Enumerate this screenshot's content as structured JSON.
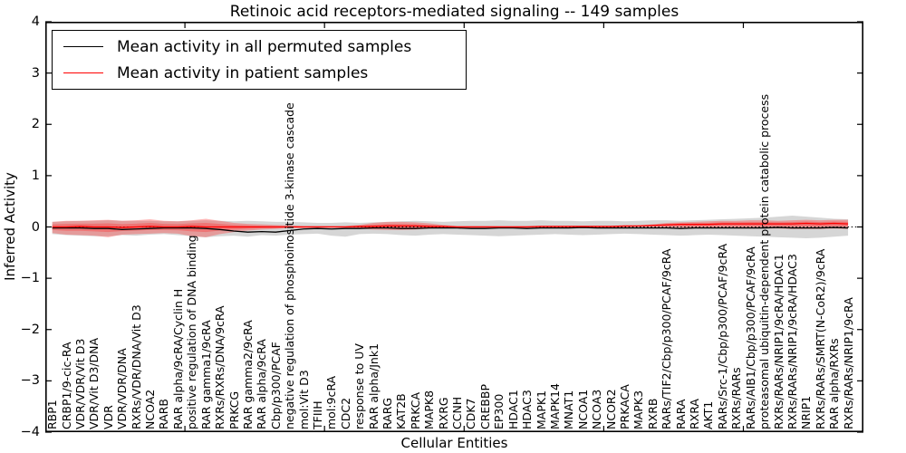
{
  "title": "Retinoic acid receptors-mediated signaling -- 149 samples",
  "axes": {
    "x_label": "Cellular Entities",
    "y_label": "Inferred Activity",
    "y_ticks": [
      "4",
      "3",
      "2",
      "1",
      "0",
      "−1",
      "−2",
      "−3",
      "−4"
    ],
    "y_tick_values": [
      4,
      3,
      2,
      1,
      0,
      -1,
      -2,
      -3,
      -4
    ],
    "x_tick_values": [
      10,
      20,
      30,
      40,
      50
    ]
  },
  "legend": {
    "entries": [
      {
        "label": "Mean activity in all permuted samples",
        "color": "#000000"
      },
      {
        "label": "Mean activity in patient samples",
        "color": "#ff0000"
      }
    ]
  },
  "chart_data": {
    "type": "line",
    "title": "Retinoic acid receptors-mediated signaling -- 149 samples",
    "xlabel": "Cellular Entities",
    "ylabel": "Inferred Activity",
    "ylim": [
      -4,
      4
    ],
    "x_max": 58.6,
    "grid": false,
    "legend_position": "upper left",
    "zero_line": 0,
    "inner_band_fraction": 0.5,
    "categories": [
      "RBP1",
      "CRBP1/9-cic-RA",
      "VDR/VDR/Vit D3",
      "VDR/Vit D3/DNA",
      "VDR",
      "VDR/VDR/DNA",
      "RXRs/VDR/DNA/Vit D3",
      "NCOA2",
      "RARB",
      "RAR alpha/9cRA/Cyclin H",
      "positive regulation of DNA binding",
      "RAR gamma1/9cRA",
      "RXRs/RXRs/DNA/9cRA",
      "PRKCG",
      "RAR gamma2/9cRA",
      "RAR alpha/9cRA",
      "Cbp/p300/PCAF",
      "negative regulation of phosphoinositide 3-kinase cascade",
      "mol:Vit D3",
      "TFIIH",
      "mol:9cRA",
      "CDC2",
      "response to UV",
      "RAR alpha/Jnk1",
      "RARG",
      "KAT2B",
      "PRKCA",
      "MAPK8",
      "RXRG",
      "CCNH",
      "CDK7",
      "CREBBP",
      "EP300",
      "HDAC1",
      "HDAC3",
      "MAPK1",
      "MAPK14",
      "MNAT1",
      "NCOA1",
      "NCOA3",
      "NCOR2",
      "PRKACA",
      "MAPK3",
      "RXRB",
      "RARs/TIF2/Cbp/p300/PCAF/9cRA",
      "RARA",
      "RXRA",
      "AKT1",
      "RARs/Src-1/Cbp/p300/PCAF/9cRA",
      "RXRs/RARs",
      "RARs/AIB1/Cbp/p300/PCAF/9cRA",
      "proteasomal ubiquitin-dependent protein catabolic process",
      "RXRs/RARs/NRIP1/9cRA/HDAC1",
      "RXRs/RARs/NRIP1/9cRA/HDAC3",
      "NRIP1",
      "RXRs/RARs/SMRT(N-CoR2)/9cRA",
      "RAR alpha/RXRs",
      "RXRs/RARs/NRIP1/9cRA"
    ],
    "series": [
      {
        "name": "Mean activity in all permuted samples",
        "color": "#000000",
        "values": [
          -0.02,
          -0.02,
          -0.02,
          -0.03,
          -0.03,
          -0.05,
          -0.04,
          -0.03,
          -0.02,
          -0.02,
          -0.02,
          -0.03,
          -0.05,
          -0.08,
          -0.1,
          -0.09,
          -0.1,
          -0.07,
          -0.04,
          -0.03,
          -0.04,
          -0.03,
          -0.03,
          -0.02,
          -0.02,
          -0.03,
          -0.03,
          -0.02,
          -0.02,
          -0.02,
          -0.03,
          -0.03,
          -0.02,
          -0.02,
          -0.03,
          -0.02,
          -0.02,
          -0.02,
          -0.01,
          -0.02,
          -0.02,
          -0.02,
          -0.02,
          -0.02,
          -0.02,
          -0.03,
          -0.02,
          -0.02,
          -0.02,
          -0.02,
          -0.02,
          -0.02,
          -0.01,
          -0.02,
          -0.02,
          -0.02,
          -0.01,
          -0.02
        ]
      },
      {
        "name": "Mean activity in patient samples",
        "color": "#ff0000",
        "values": [
          0.0,
          0.0,
          0.01,
          0.0,
          0.0,
          -0.01,
          0.0,
          0.01,
          0.0,
          0.0,
          0.01,
          0.0,
          0.0,
          0.0,
          0.0,
          0.0,
          0.0,
          0.0,
          0.0,
          0.0,
          0.0,
          0.0,
          0.01,
          0.01,
          0.02,
          0.02,
          0.02,
          0.01,
          0.01,
          0.0,
          0.0,
          0.0,
          0.0,
          0.0,
          0.0,
          0.01,
          0.01,
          0.01,
          0.01,
          0.01,
          0.01,
          0.02,
          0.02,
          0.03,
          0.04,
          0.05,
          0.05,
          0.05,
          0.06,
          0.06,
          0.06,
          0.06,
          0.06,
          0.06,
          0.07,
          0.06,
          0.07,
          0.06
        ]
      }
    ],
    "bands": [
      {
        "name": "permuted-samples-range",
        "color": "rgba(128,128,128,0.32)",
        "upper": [
          0.1,
          0.11,
          0.12,
          0.12,
          0.13,
          0.12,
          0.12,
          0.12,
          0.11,
          0.11,
          0.12,
          0.13,
          0.12,
          0.11,
          0.12,
          0.11,
          0.1,
          0.1,
          0.09,
          0.08,
          0.08,
          0.09,
          0.08,
          0.09,
          0.1,
          0.11,
          0.12,
          0.11,
          0.1,
          0.11,
          0.12,
          0.12,
          0.13,
          0.12,
          0.12,
          0.13,
          0.12,
          0.12,
          0.11,
          0.12,
          0.12,
          0.11,
          0.12,
          0.13,
          0.13,
          0.12,
          0.13,
          0.14,
          0.15,
          0.16,
          0.17,
          0.18,
          0.2,
          0.22,
          0.2,
          0.18,
          0.16,
          0.15
        ],
        "lower": [
          -0.14,
          -0.16,
          -0.17,
          -0.18,
          -0.18,
          -0.16,
          -0.17,
          -0.15,
          -0.14,
          -0.16,
          -0.18,
          -0.2,
          -0.18,
          -0.17,
          -0.19,
          -0.16,
          -0.17,
          -0.15,
          -0.14,
          -0.13,
          -0.17,
          -0.19,
          -0.14,
          -0.13,
          -0.14,
          -0.16,
          -0.17,
          -0.15,
          -0.14,
          -0.15,
          -0.16,
          -0.17,
          -0.18,
          -0.17,
          -0.16,
          -0.15,
          -0.14,
          -0.15,
          -0.16,
          -0.15,
          -0.14,
          -0.13,
          -0.14,
          -0.15,
          -0.16,
          -0.17,
          -0.16,
          -0.15,
          -0.16,
          -0.17,
          -0.18,
          -0.19,
          -0.2,
          -0.21,
          -0.22,
          -0.21,
          -0.19,
          -0.17
        ]
      },
      {
        "name": "patient-samples-range",
        "color": "rgba(255,45,45,0.35)",
        "upper": [
          0.1,
          0.12,
          0.12,
          0.13,
          0.14,
          0.12,
          0.13,
          0.15,
          0.12,
          0.11,
          0.13,
          0.16,
          0.12,
          0.08,
          0.06,
          0.05,
          0.04,
          0.03,
          0.02,
          0.02,
          0.02,
          0.02,
          0.04,
          0.08,
          0.1,
          0.1,
          0.09,
          0.07,
          0.04,
          0.02,
          0.02,
          0.02,
          0.02,
          0.02,
          0.02,
          0.02,
          0.02,
          0.02,
          0.02,
          0.02,
          0.02,
          0.02,
          0.03,
          0.05,
          0.08,
          0.09,
          0.1,
          0.11,
          0.12,
          0.12,
          0.13,
          0.13,
          0.12,
          0.13,
          0.14,
          0.13,
          0.14,
          0.14
        ],
        "lower": [
          -0.12,
          -0.15,
          -0.16,
          -0.17,
          -0.2,
          -0.15,
          -0.14,
          -0.13,
          -0.12,
          -0.13,
          -0.18,
          -0.2,
          -0.14,
          -0.1,
          -0.07,
          -0.05,
          -0.04,
          -0.02,
          -0.02,
          -0.01,
          -0.01,
          -0.01,
          -0.03,
          -0.05,
          -0.06,
          -0.06,
          -0.05,
          -0.03,
          -0.02,
          -0.01,
          -0.01,
          -0.01,
          -0.01,
          -0.01,
          -0.01,
          -0.01,
          -0.01,
          -0.01,
          -0.01,
          -0.01,
          -0.01,
          -0.01,
          0.0,
          0.0,
          -0.01,
          -0.01,
          -0.02,
          -0.02,
          -0.02,
          -0.03,
          -0.03,
          -0.03,
          -0.03,
          -0.04,
          -0.04,
          -0.04,
          -0.03,
          -0.04
        ]
      }
    ]
  }
}
